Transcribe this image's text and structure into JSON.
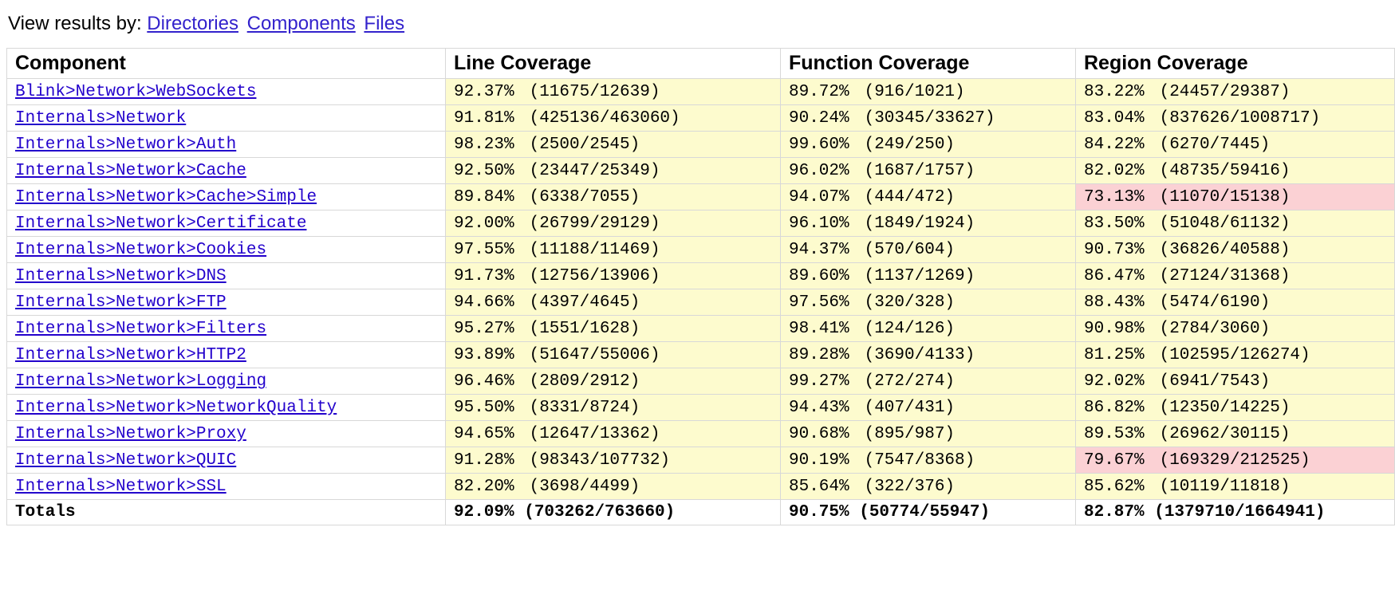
{
  "colors": {
    "link": "#2200cc",
    "view_link": "#3322cc",
    "border": "#d8d8d8",
    "bg_default": "#ffffff",
    "bg_yellow": "#fdfbce",
    "bg_pink": "#fbd1d4"
  },
  "view_by": {
    "label": "View results by: ",
    "links": [
      "Directories",
      "Components",
      "Files"
    ]
  },
  "table": {
    "headers": [
      "Component",
      "Line Coverage",
      "Function Coverage",
      "Region Coverage"
    ],
    "totals_label": "Totals",
    "rows": [
      {
        "name": "Blink>Network>WebSockets",
        "line": {
          "pct": "92.37%",
          "num": 11675,
          "den": 12639,
          "bg": "bg_yellow"
        },
        "function": {
          "pct": "89.72%",
          "num": 916,
          "den": 1021,
          "bg": "bg_yellow"
        },
        "region": {
          "pct": "83.22%",
          "num": 24457,
          "den": 29387,
          "bg": "bg_yellow"
        }
      },
      {
        "name": "Internals>Network",
        "line": {
          "pct": "91.81%",
          "num": 425136,
          "den": 463060,
          "bg": "bg_yellow"
        },
        "function": {
          "pct": "90.24%",
          "num": 30345,
          "den": 33627,
          "bg": "bg_yellow"
        },
        "region": {
          "pct": "83.04%",
          "num": 837626,
          "den": 1008717,
          "bg": "bg_yellow"
        }
      },
      {
        "name": "Internals>Network>Auth",
        "line": {
          "pct": "98.23%",
          "num": 2500,
          "den": 2545,
          "bg": "bg_yellow"
        },
        "function": {
          "pct": "99.60%",
          "num": 249,
          "den": 250,
          "bg": "bg_yellow"
        },
        "region": {
          "pct": "84.22%",
          "num": 6270,
          "den": 7445,
          "bg": "bg_yellow"
        }
      },
      {
        "name": "Internals>Network>Cache",
        "line": {
          "pct": "92.50%",
          "num": 23447,
          "den": 25349,
          "bg": "bg_yellow"
        },
        "function": {
          "pct": "96.02%",
          "num": 1687,
          "den": 1757,
          "bg": "bg_yellow"
        },
        "region": {
          "pct": "82.02%",
          "num": 48735,
          "den": 59416,
          "bg": "bg_yellow"
        }
      },
      {
        "name": "Internals>Network>Cache>Simple",
        "line": {
          "pct": "89.84%",
          "num": 6338,
          "den": 7055,
          "bg": "bg_yellow"
        },
        "function": {
          "pct": "94.07%",
          "num": 444,
          "den": 472,
          "bg": "bg_yellow"
        },
        "region": {
          "pct": "73.13%",
          "num": 11070,
          "den": 15138,
          "bg": "bg_pink"
        }
      },
      {
        "name": "Internals>Network>Certificate",
        "line": {
          "pct": "92.00%",
          "num": 26799,
          "den": 29129,
          "bg": "bg_yellow"
        },
        "function": {
          "pct": "96.10%",
          "num": 1849,
          "den": 1924,
          "bg": "bg_yellow"
        },
        "region": {
          "pct": "83.50%",
          "num": 51048,
          "den": 61132,
          "bg": "bg_yellow"
        }
      },
      {
        "name": "Internals>Network>Cookies",
        "line": {
          "pct": "97.55%",
          "num": 11188,
          "den": 11469,
          "bg": "bg_yellow"
        },
        "function": {
          "pct": "94.37%",
          "num": 570,
          "den": 604,
          "bg": "bg_yellow"
        },
        "region": {
          "pct": "90.73%",
          "num": 36826,
          "den": 40588,
          "bg": "bg_yellow"
        }
      },
      {
        "name": "Internals>Network>DNS",
        "line": {
          "pct": "91.73%",
          "num": 12756,
          "den": 13906,
          "bg": "bg_yellow"
        },
        "function": {
          "pct": "89.60%",
          "num": 1137,
          "den": 1269,
          "bg": "bg_yellow"
        },
        "region": {
          "pct": "86.47%",
          "num": 27124,
          "den": 31368,
          "bg": "bg_yellow"
        }
      },
      {
        "name": "Internals>Network>FTP",
        "line": {
          "pct": "94.66%",
          "num": 4397,
          "den": 4645,
          "bg": "bg_yellow"
        },
        "function": {
          "pct": "97.56%",
          "num": 320,
          "den": 328,
          "bg": "bg_yellow"
        },
        "region": {
          "pct": "88.43%",
          "num": 5474,
          "den": 6190,
          "bg": "bg_yellow"
        }
      },
      {
        "name": "Internals>Network>Filters",
        "line": {
          "pct": "95.27%",
          "num": 1551,
          "den": 1628,
          "bg": "bg_yellow"
        },
        "function": {
          "pct": "98.41%",
          "num": 124,
          "den": 126,
          "bg": "bg_yellow"
        },
        "region": {
          "pct": "90.98%",
          "num": 2784,
          "den": 3060,
          "bg": "bg_yellow"
        }
      },
      {
        "name": "Internals>Network>HTTP2",
        "line": {
          "pct": "93.89%",
          "num": 51647,
          "den": 55006,
          "bg": "bg_yellow"
        },
        "function": {
          "pct": "89.28%",
          "num": 3690,
          "den": 4133,
          "bg": "bg_yellow"
        },
        "region": {
          "pct": "81.25%",
          "num": 102595,
          "den": 126274,
          "bg": "bg_yellow"
        }
      },
      {
        "name": "Internals>Network>Logging",
        "line": {
          "pct": "96.46%",
          "num": 2809,
          "den": 2912,
          "bg": "bg_yellow"
        },
        "function": {
          "pct": "99.27%",
          "num": 272,
          "den": 274,
          "bg": "bg_yellow"
        },
        "region": {
          "pct": "92.02%",
          "num": 6941,
          "den": 7543,
          "bg": "bg_yellow"
        }
      },
      {
        "name": "Internals>Network>NetworkQuality",
        "line": {
          "pct": "95.50%",
          "num": 8331,
          "den": 8724,
          "bg": "bg_yellow"
        },
        "function": {
          "pct": "94.43%",
          "num": 407,
          "den": 431,
          "bg": "bg_yellow"
        },
        "region": {
          "pct": "86.82%",
          "num": 12350,
          "den": 14225,
          "bg": "bg_yellow"
        }
      },
      {
        "name": "Internals>Network>Proxy",
        "line": {
          "pct": "94.65%",
          "num": 12647,
          "den": 13362,
          "bg": "bg_yellow"
        },
        "function": {
          "pct": "90.68%",
          "num": 895,
          "den": 987,
          "bg": "bg_yellow"
        },
        "region": {
          "pct": "89.53%",
          "num": 26962,
          "den": 30115,
          "bg": "bg_yellow"
        }
      },
      {
        "name": "Internals>Network>QUIC",
        "line": {
          "pct": "91.28%",
          "num": 98343,
          "den": 107732,
          "bg": "bg_yellow"
        },
        "function": {
          "pct": "90.19%",
          "num": 7547,
          "den": 8368,
          "bg": "bg_yellow"
        },
        "region": {
          "pct": "79.67%",
          "num": 169329,
          "den": 212525,
          "bg": "bg_pink"
        }
      },
      {
        "name": "Internals>Network>SSL",
        "line": {
          "pct": "82.20%",
          "num": 3698,
          "den": 4499,
          "bg": "bg_yellow"
        },
        "function": {
          "pct": "85.64%",
          "num": 322,
          "den": 376,
          "bg": "bg_yellow"
        },
        "region": {
          "pct": "85.62%",
          "num": 10119,
          "den": 11818,
          "bg": "bg_yellow"
        }
      }
    ],
    "totals": {
      "line": {
        "pct": "92.09%",
        "num": 703262,
        "den": 763660
      },
      "function": {
        "pct": "90.75%",
        "num": 50774,
        "den": 55947
      },
      "region": {
        "pct": "82.87%",
        "num": 1379710,
        "den": 1664941
      }
    }
  }
}
